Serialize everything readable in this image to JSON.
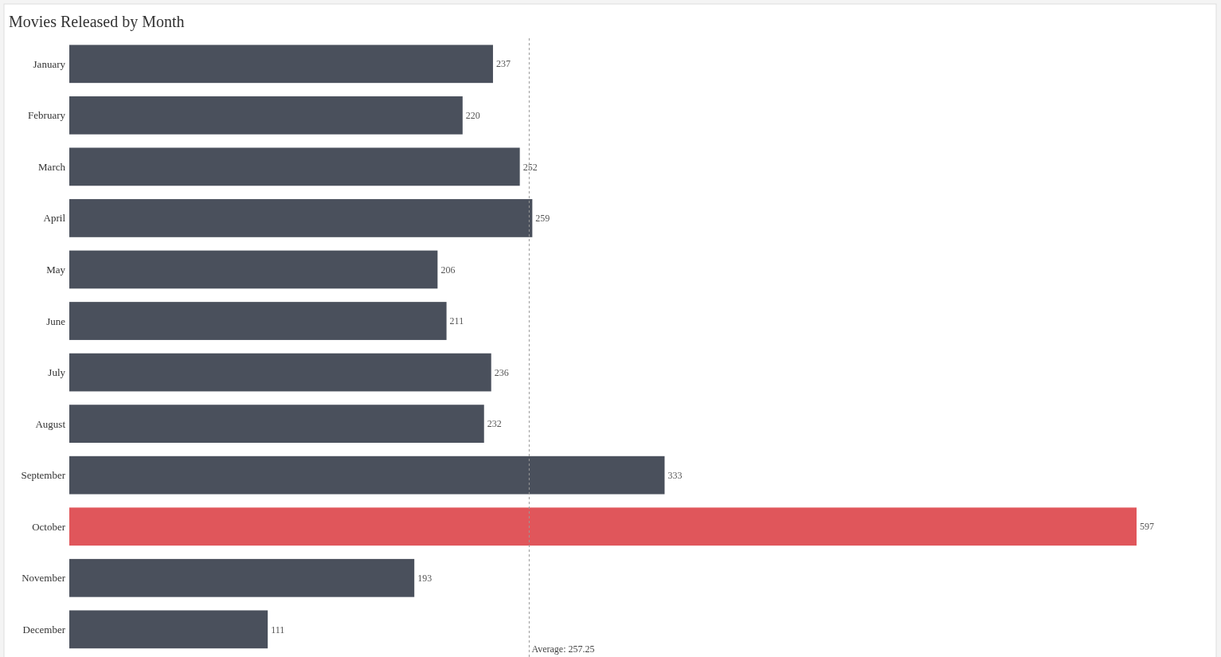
{
  "chart_data": {
    "type": "bar",
    "orientation": "horizontal",
    "title": "Movies Released by Month",
    "categories": [
      "January",
      "February",
      "March",
      "April",
      "May",
      "June",
      "July",
      "August",
      "September",
      "October",
      "November",
      "December"
    ],
    "values": [
      237,
      220,
      252,
      259,
      206,
      211,
      236,
      232,
      333,
      597,
      193,
      111
    ],
    "colors": [
      "#4a505c",
      "#4a505c",
      "#4a505c",
      "#4a505c",
      "#4a505c",
      "#4a505c",
      "#4a505c",
      "#4a505c",
      "#4a505c",
      "#e0565b",
      "#4a505c",
      "#4a505c"
    ],
    "data_labels": true,
    "ref_lines": [
      {
        "axis": "x",
        "value": 257.25,
        "label": "Average: 257.25",
        "color": "#999999",
        "line_style": "dashed"
      }
    ]
  }
}
